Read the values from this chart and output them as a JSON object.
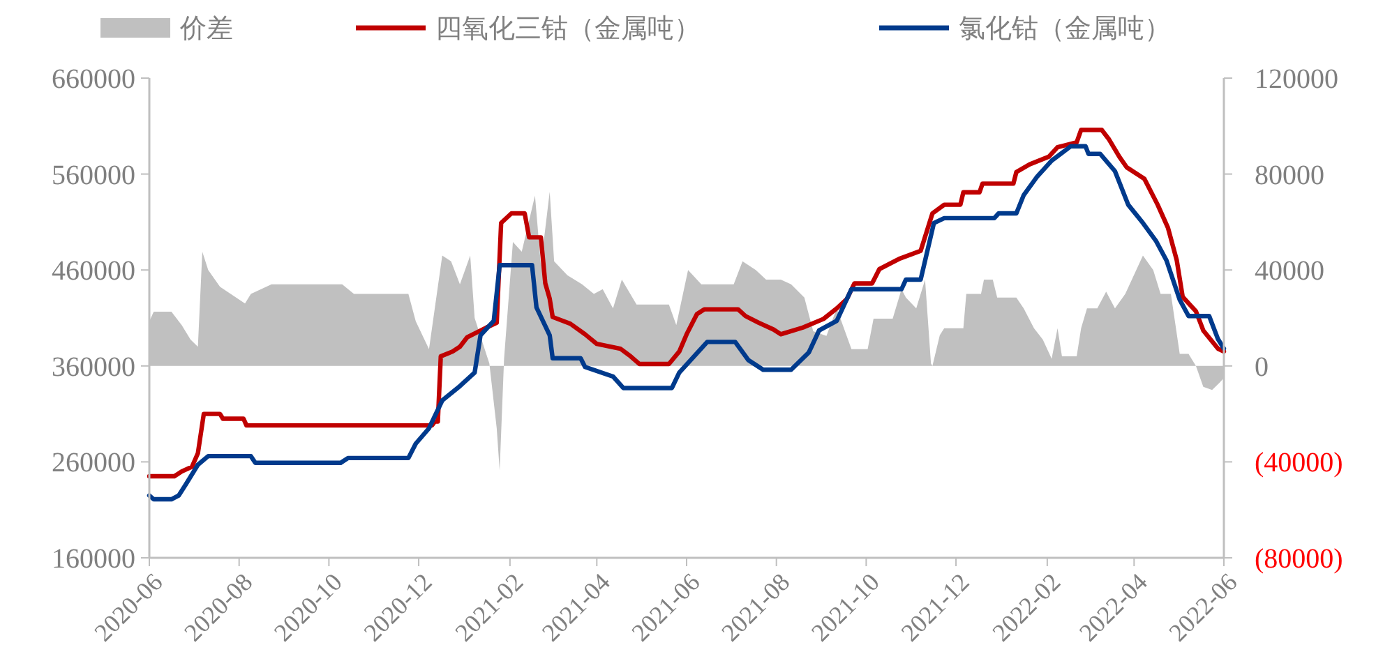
{
  "chart_data": {
    "type": "line",
    "legend": "top",
    "xlim": [
      "2020-06-01",
      "2022-06-01"
    ],
    "xticks": [
      "2020-06",
      "2020-08",
      "2020-10",
      "2020-12",
      "2021-02",
      "2021-04",
      "2021-06",
      "2021-08",
      "2021-10",
      "2021-12",
      "2022-02",
      "2022-04",
      "2022-06"
    ],
    "ylim": [
      160000,
      660000
    ],
    "yticks": [
      160000,
      260000,
      360000,
      460000,
      560000,
      660000
    ],
    "y2lim": [
      -80000,
      120000
    ],
    "y2ticks": [
      {
        "value": -80000,
        "label": "(80000)"
      },
      {
        "value": -40000,
        "label": "(40000)"
      },
      0,
      40000,
      80000,
      120000
    ],
    "series": [
      {
        "name": "价差",
        "type": "area",
        "axis": "y2",
        "color": "#c0c0c0",
        "x": [
          "2020-06-01",
          "2020-06-04",
          "2020-06-16",
          "2020-06-23",
          "2020-06-29",
          "2020-07-04",
          "2020-07-07",
          "2020-07-11",
          "2020-07-19",
          "2020-08-05",
          "2020-08-09",
          "2020-08-23",
          "2020-10-10",
          "2020-10-18",
          "2020-11-24",
          "2020-11-29",
          "2020-12-08",
          "2020-12-17",
          "2020-12-23",
          "2020-12-29",
          "2021-01-05",
          "2021-01-08",
          "2021-01-18",
          "2021-01-23",
          "2021-01-25",
          "2021-01-28",
          "2021-02-03",
          "2021-02-09",
          "2021-02-18",
          "2021-02-22",
          "2021-02-28",
          "2021-03-03",
          "2021-03-12",
          "2021-03-22",
          "2021-03-30",
          "2021-04-05",
          "2021-04-12",
          "2021-04-18",
          "2021-04-28",
          "2021-05-20",
          "2021-05-25",
          "2021-06-02",
          "2021-06-11",
          "2021-07-03",
          "2021-07-09",
          "2021-07-18",
          "2021-07-25",
          "2021-08-04",
          "2021-08-11",
          "2021-08-20",
          "2021-08-26",
          "2021-09-04",
          "2021-09-11",
          "2021-09-21",
          "2021-10-02",
          "2021-10-06",
          "2021-10-19",
          "2021-10-25",
          "2021-10-28",
          "2021-11-04",
          "2021-11-10",
          "2021-11-14",
          "2021-11-15",
          "2021-11-20",
          "2021-11-23",
          "2021-12-06",
          "2021-12-08",
          "2021-12-18",
          "2021-12-20",
          "2021-12-26",
          "2021-12-29",
          "2022-01-11",
          "2022-01-16",
          "2022-01-23",
          "2022-01-29",
          "2022-02-04",
          "2022-02-08",
          "2022-02-11",
          "2022-02-21",
          "2022-02-24",
          "2022-02-28",
          "2022-03-07",
          "2022-03-13",
          "2022-03-19",
          "2022-03-26",
          "2022-04-04",
          "2022-04-07",
          "2022-04-14",
          "2022-04-19",
          "2022-04-26",
          "2022-05-02",
          "2022-05-08",
          "2022-05-13",
          "2022-05-18",
          "2022-05-24",
          "2022-05-29",
          "2022-06-01"
        ],
        "values": [
          18600,
          22600,
          22600,
          17000,
          11000,
          8000,
          47600,
          40000,
          33000,
          26000,
          30000,
          34000,
          34000,
          30000,
          30000,
          18600,
          7000,
          46000,
          43600,
          34000,
          46000,
          20000,
          1000,
          -26000,
          -43600,
          3000,
          51700,
          47600,
          71000,
          42000,
          72600,
          43600,
          37800,
          34000,
          30000,
          32000,
          24000,
          36000,
          25600,
          25600,
          17000,
          40000,
          34000,
          34000,
          43600,
          40000,
          36000,
          36000,
          34000,
          28500,
          14500,
          12500,
          24000,
          7000,
          7000,
          19700,
          19700,
          32000,
          28500,
          24000,
          36000,
          1000,
          0,
          12800,
          15700,
          15700,
          30000,
          30000,
          36000,
          36000,
          28500,
          28500,
          24000,
          15700,
          11000,
          3000,
          15700,
          4000,
          4000,
          15700,
          24000,
          24000,
          31000,
          24000,
          30000,
          42000,
          46000,
          40000,
          30000,
          30000,
          5000,
          5000,
          0,
          -8700,
          -10000,
          -7000,
          -5000
        ]
      },
      {
        "name": "四氧化三钴（金属吨）",
        "color": "#c00000",
        "x": [
          "2020-06-01",
          "2020-06-18",
          "2020-06-23",
          "2020-06-30",
          "2020-07-04",
          "2020-07-08",
          "2020-07-19",
          "2020-07-21",
          "2020-08-04",
          "2020-08-06",
          "2020-12-10",
          "2020-12-12",
          "2020-12-14",
          "2020-12-16",
          "2020-12-24",
          "2020-12-29",
          "2021-01-03",
          "2021-01-16",
          "2021-01-23",
          "2021-01-26",
          "2021-02-02",
          "2021-02-11",
          "2021-02-14",
          "2021-02-22",
          "2021-02-25",
          "2021-02-28",
          "2021-03-02",
          "2021-03-14",
          "2021-03-24",
          "2021-04-01",
          "2021-04-17",
          "2021-04-24",
          "2021-04-30",
          "2021-05-20",
          "2021-05-27",
          "2021-06-01",
          "2021-06-08",
          "2021-06-13",
          "2021-07-06",
          "2021-07-11",
          "2021-07-20",
          "2021-07-30",
          "2021-08-04",
          "2021-08-19",
          "2021-09-02",
          "2021-09-11",
          "2021-09-18",
          "2021-09-23",
          "2021-10-05",
          "2021-10-10",
          "2021-10-24",
          "2021-11-07",
          "2021-11-15",
          "2021-11-23",
          "2021-12-04",
          "2021-12-06",
          "2021-12-17",
          "2021-12-19",
          "2022-01-09",
          "2022-01-11",
          "2022-01-20",
          "2022-02-02",
          "2022-02-08",
          "2022-02-21",
          "2022-02-24",
          "2022-03-10",
          "2022-03-15",
          "2022-03-22",
          "2022-03-27",
          "2022-04-08",
          "2022-04-17",
          "2022-04-24",
          "2022-04-30",
          "2022-05-04",
          "2022-05-13",
          "2022-05-18",
          "2022-05-28",
          "2022-06-01"
        ],
        "values": [
          245000,
          245000,
          250000,
          255000,
          269000,
          310000,
          310000,
          305000,
          305000,
          298000,
          298000,
          302000,
          302000,
          370000,
          375000,
          380000,
          390000,
          400000,
          405000,
          509000,
          519000,
          519000,
          494000,
          494000,
          446000,
          430000,
          411000,
          404000,
          393000,
          383000,
          378000,
          370000,
          362000,
          362000,
          375000,
          393000,
          414000,
          419000,
          419000,
          412000,
          405000,
          398000,
          393000,
          400000,
          409000,
          420000,
          430000,
          446000,
          446000,
          461000,
          472000,
          480000,
          519000,
          528000,
          528000,
          541000,
          541000,
          550000,
          550000,
          562000,
          570000,
          578000,
          588000,
          593000,
          606000,
          606000,
          596000,
          578000,
          567000,
          555000,
          528000,
          504000,
          470000,
          432000,
          417000,
          397000,
          378000,
          375000
        ]
      },
      {
        "name": "氯化钴（金属吨）",
        "color": "#003a8c",
        "x": [
          "2020-06-01",
          "2020-06-04",
          "2020-06-16",
          "2020-06-21",
          "2020-06-26",
          "2020-07-04",
          "2020-07-11",
          "2020-08-09",
          "2020-08-12",
          "2020-10-09",
          "2020-10-14",
          "2020-11-24",
          "2020-11-29",
          "2020-12-08",
          "2020-12-17",
          "2020-12-29",
          "2021-01-08",
          "2021-01-12",
          "2021-01-21",
          "2021-01-25",
          "2021-02-16",
          "2021-02-19",
          "2021-02-28",
          "2021-03-02",
          "2021-03-21",
          "2021-03-24",
          "2021-04-12",
          "2021-04-19",
          "2021-05-22",
          "2021-05-27",
          "2021-06-15",
          "2021-07-04",
          "2021-07-13",
          "2021-07-23",
          "2021-08-11",
          "2021-08-23",
          "2021-08-30",
          "2021-09-11",
          "2021-09-21",
          "2021-10-25",
          "2021-10-28",
          "2021-11-07",
          "2021-11-16",
          "2021-11-23",
          "2021-12-27",
          "2021-12-30",
          "2022-01-11",
          "2022-01-16",
          "2022-01-25",
          "2022-02-04",
          "2022-02-17",
          "2022-02-27",
          "2022-03-01",
          "2022-03-09",
          "2022-03-19",
          "2022-03-28",
          "2022-04-07",
          "2022-04-16",
          "2022-04-23",
          "2022-05-02",
          "2022-05-08",
          "2022-05-22",
          "2022-05-28",
          "2022-06-01"
        ],
        "values": [
          225000,
          221000,
          221000,
          225000,
          237000,
          257000,
          266000,
          266000,
          259000,
          259000,
          264000,
          264000,
          279000,
          295000,
          324000,
          339000,
          353000,
          392000,
          407000,
          465000,
          465000,
          421000,
          392000,
          368000,
          368000,
          359000,
          349000,
          337000,
          337000,
          353000,
          385000,
          385000,
          366000,
          356000,
          356000,
          374000,
          397000,
          407000,
          440000,
          440000,
          450000,
          450000,
          509000,
          514000,
          514000,
          519000,
          519000,
          538000,
          557000,
          574000,
          589000,
          589000,
          581000,
          581000,
          563000,
          528000,
          509000,
          490000,
          470000,
          429000,
          412000,
          412000,
          388000,
          378000
        ]
      }
    ]
  }
}
